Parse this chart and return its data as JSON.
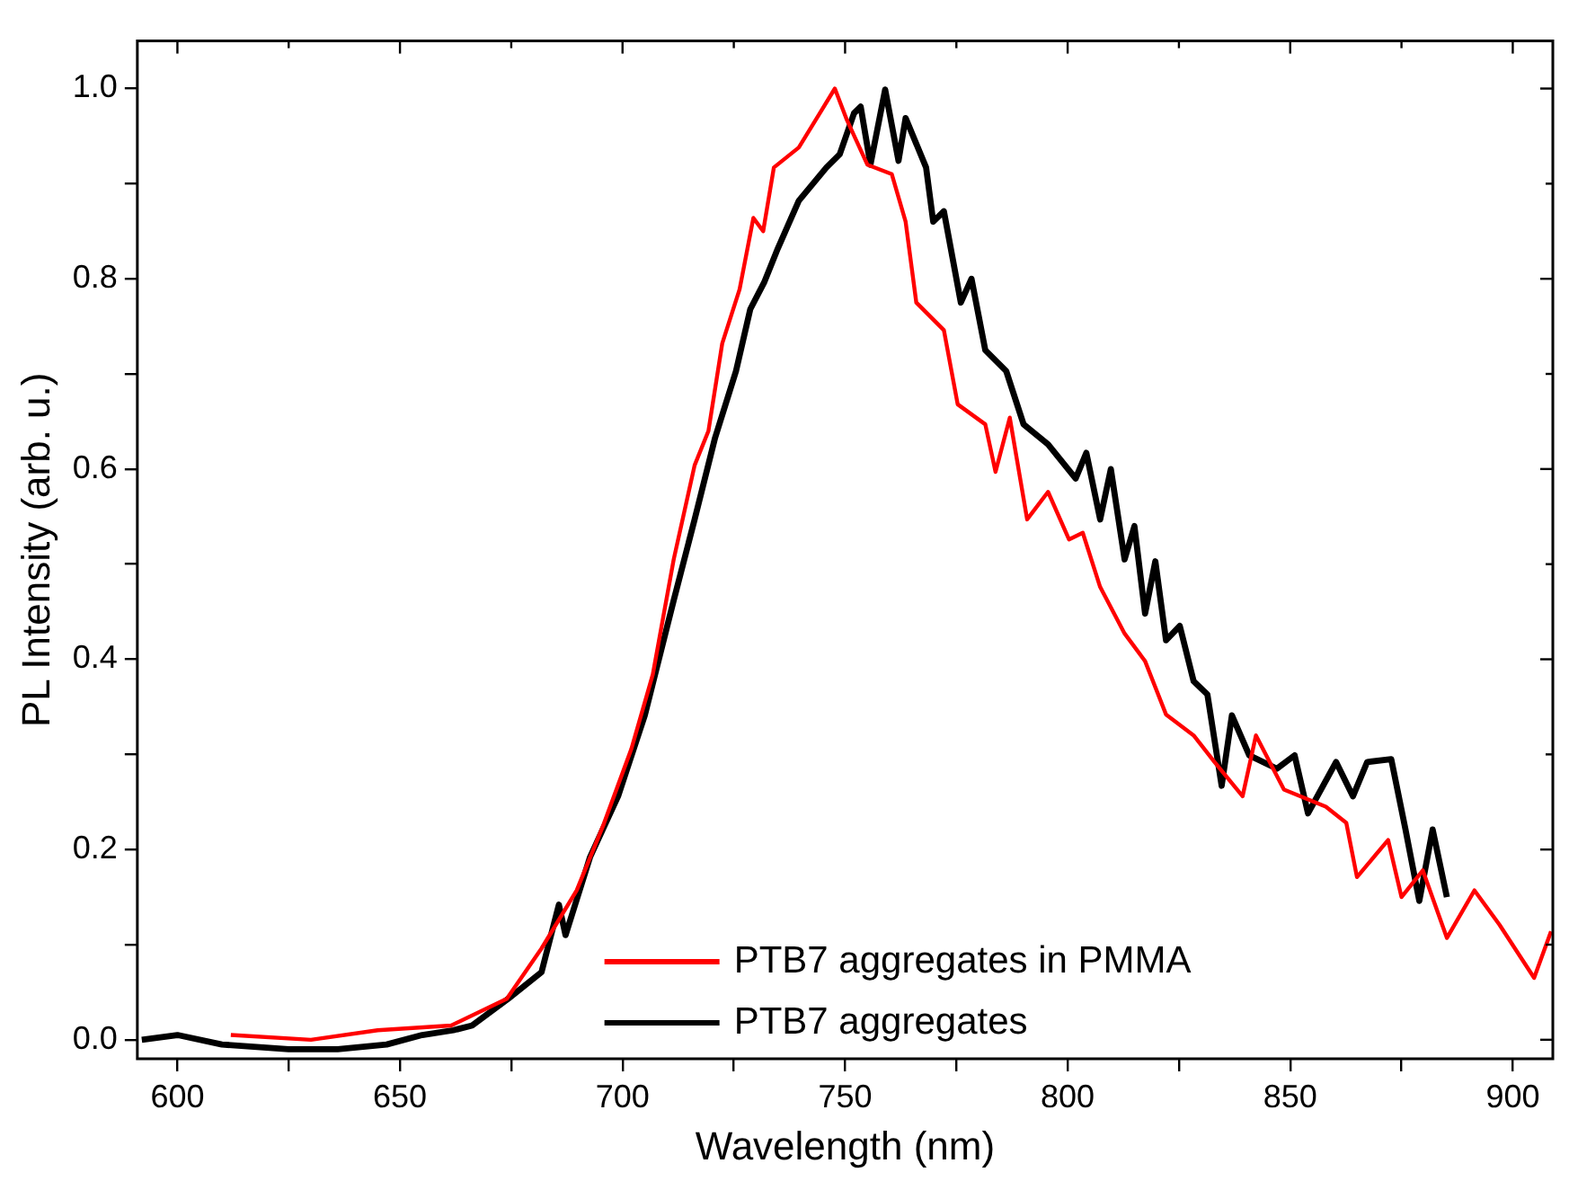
{
  "chart_data": {
    "type": "line",
    "xlabel": "Wavelength (nm)",
    "ylabel": "PL Intensity (arb. u.)",
    "xlim": [
      591,
      909
    ],
    "ylim": [
      -0.02,
      1.05
    ],
    "xticks": [
      600,
      {
        "value": 625,
        "label": null
      },
      650,
      {
        "value": 675,
        "label": null
      },
      700,
      {
        "value": 725,
        "label": null
      },
      750,
      {
        "value": 775,
        "label": null
      },
      800,
      {
        "value": 825,
        "label": null
      },
      850,
      {
        "value": 875,
        "label": null
      },
      900
    ],
    "yticks": [
      {
        "value": 0,
        "label": "0.0"
      },
      {
        "value": 0.1,
        "label": null
      },
      {
        "value": 0.2,
        "label": "0.2"
      },
      {
        "value": 0.3,
        "label": null
      },
      {
        "value": 0.4,
        "label": "0.4"
      },
      {
        "value": 0.5,
        "label": null
      },
      {
        "value": 0.6,
        "label": "0.6"
      },
      {
        "value": 0.7,
        "label": null
      },
      {
        "value": 0.8,
        "label": "0.8"
      },
      {
        "value": 0.9,
        "label": null
      },
      {
        "value": 1,
        "label": "1.0"
      }
    ],
    "grid": false,
    "legend": "bottom",
    "marker": "none",
    "line_style": "solid",
    "series": [
      {
        "name": "PTB7 aggregates in PMMA",
        "color": "#ff0000",
        "x": [
          612,
          630,
          645,
          661.5,
          674,
          681.8,
          689.7,
          695.8,
          702,
          706.8,
          711.5,
          716.2,
          719.3,
          722.4,
          726.3,
          729.4,
          731.6,
          734,
          739.6,
          744.3,
          747.7,
          750.4,
          755,
          760.5,
          763.6,
          766,
          772.2,
          775.3,
          781.5,
          783.8,
          787,
          790.9,
          795.6,
          800.3,
          803.4,
          807.3,
          812.8,
          817.4,
          822.1,
          828.3,
          833,
          839.3,
          842.3,
          848.6,
          858,
          862.6,
          865,
          872,
          875,
          879.8,
          885.2,
          891.4,
          897,
          904.8,
          908.6
        ],
        "values": [
          0.005,
          0.0,
          0.01,
          0.015,
          0.043,
          0.096,
          0.157,
          0.227,
          0.306,
          0.384,
          0.505,
          0.604,
          0.64,
          0.732,
          0.789,
          0.864,
          0.85,
          0.917,
          0.938,
          0.974,
          1.0,
          0.967,
          0.92,
          0.91,
          0.86,
          0.775,
          0.746,
          0.668,
          0.647,
          0.597,
          0.654,
          0.547,
          0.576,
          0.526,
          0.533,
          0.476,
          0.427,
          0.398,
          0.342,
          0.32,
          0.292,
          0.256,
          0.32,
          0.263,
          0.245,
          0.228,
          0.171,
          0.21,
          0.15,
          0.178,
          0.107,
          0.157,
          0.121,
          0.065,
          0.114
        ]
      },
      {
        "name": "PTB7 aggregates",
        "color": "#000000",
        "x": [
          592,
          600,
          610,
          625,
          636,
          647,
          655,
          662,
          666.2,
          674.3,
          681.8,
          685.7,
          687.2,
          692.7,
          699,
          705,
          711.5,
          716.2,
          720.8,
          725.5,
          728.7,
          731.8,
          734.9,
          739.6,
          745.8,
          748.8,
          752,
          753.5,
          755.7,
          759,
          762,
          763.6,
          768.2,
          769.8,
          772.2,
          776,
          778.4,
          781.5,
          786.2,
          790.1,
          795.6,
          801.8,
          804.2,
          807.3,
          809.7,
          812.8,
          815,
          817.4,
          819.7,
          822.1,
          825.2,
          828.3,
          831.4,
          834.6,
          836.9,
          840.8,
          847,
          851,
          854,
          860.3,
          864.1,
          867.3,
          872.7,
          875.9,
          879,
          882,
          885.2
        ],
        "values": [
          0.0,
          0.005,
          -0.005,
          -0.01,
          -0.01,
          -0.005,
          0.005,
          0.01,
          0.015,
          0.043,
          0.071,
          0.142,
          0.11,
          0.192,
          0.256,
          0.341,
          0.462,
          0.547,
          0.633,
          0.703,
          0.768,
          0.796,
          0.832,
          0.882,
          0.917,
          0.931,
          0.974,
          0.981,
          0.92,
          0.999,
          0.924,
          0.969,
          0.917,
          0.86,
          0.871,
          0.775,
          0.8,
          0.725,
          0.703,
          0.647,
          0.626,
          0.59,
          0.617,
          0.547,
          0.6,
          0.505,
          0.54,
          0.448,
          0.503,
          0.42,
          0.435,
          0.377,
          0.363,
          0.267,
          0.341,
          0.299,
          0.285,
          0.299,
          0.238,
          0.292,
          0.256,
          0.292,
          0.295,
          0.221,
          0.146,
          0.221,
          0.15
        ]
      }
    ]
  }
}
